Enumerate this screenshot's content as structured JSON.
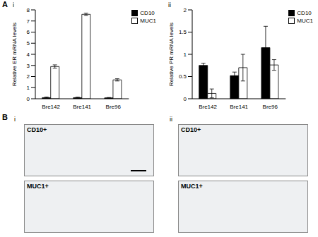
{
  "chart_data": [
    {
      "type": "bar",
      "ylabel": "Relative ER mRNA levels",
      "categories": [
        "Bre142",
        "Bre141",
        "Bre96"
      ],
      "series": [
        {
          "name": "CD10",
          "color": "#000000",
          "values": [
            0.1,
            0.1,
            0.08
          ],
          "errors": [
            0.05,
            0.04,
            0.03
          ]
        },
        {
          "name": "MUC1",
          "color": "#ffffff",
          "values": [
            2.9,
            7.6,
            1.7
          ],
          "errors": [
            0.15,
            0.1,
            0.1
          ]
        }
      ],
      "ylim": [
        0,
        8
      ],
      "yticks": [
        0,
        1,
        2,
        3,
        4,
        5,
        6,
        7,
        8
      ],
      "legend": "upper right"
    },
    {
      "type": "bar",
      "ylabel": "Relative PR mRNA levels",
      "categories": [
        "Bre142",
        "Bre141",
        "Bre96"
      ],
      "series": [
        {
          "name": "CD10",
          "color": "#000000",
          "values": [
            0.75,
            0.52,
            1.15
          ],
          "errors": [
            0.05,
            0.08,
            0.48
          ]
        },
        {
          "name": "MUC1",
          "color": "#ffffff",
          "values": [
            0.12,
            0.7,
            0.76
          ],
          "errors": [
            0.1,
            0.3,
            0.12
          ]
        }
      ],
      "ylim": [
        0,
        2
      ],
      "yticks": [
        0,
        0.5,
        1,
        1.5,
        2
      ],
      "legend": "upper right"
    }
  ],
  "panel_a": {
    "label": "A",
    "sublabels": [
      "i",
      "ii"
    ]
  },
  "panel_b": {
    "label": "B",
    "sublabels": [
      "i",
      "ii"
    ],
    "images": [
      [
        "CD10+",
        "MUC1+"
      ],
      [
        "CD10+",
        "MUC1+"
      ]
    ]
  }
}
